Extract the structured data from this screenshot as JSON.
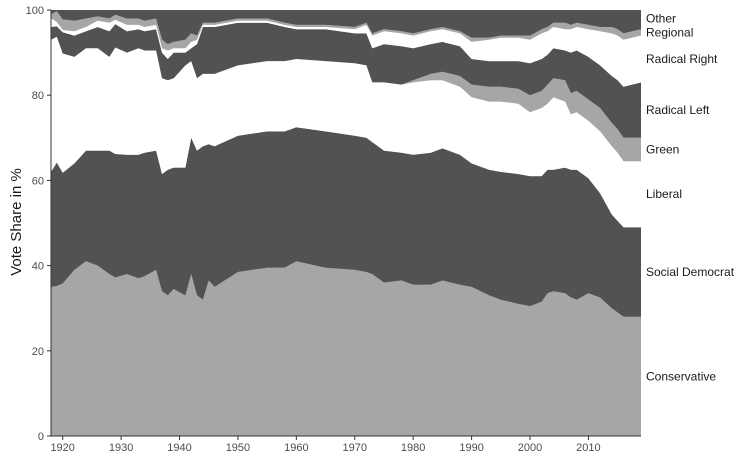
{
  "chart_data": {
    "type": "area",
    "stacked": true,
    "ylabel": "Vote Share in %",
    "xlabel": "",
    "xlim": [
      1918,
      2019
    ],
    "ylim": [
      0,
      100
    ],
    "x_ticks": [
      1920,
      1930,
      1940,
      1950,
      1960,
      1970,
      1980,
      1990,
      2000,
      2010
    ],
    "y_ticks": [
      0,
      20,
      40,
      60,
      80,
      100
    ],
    "grid": false,
    "legend": "direct labels right",
    "x": [
      1918,
      1919,
      1920,
      1922,
      1924,
      1926,
      1928,
      1929,
      1931,
      1933,
      1934,
      1936,
      1937,
      1938,
      1939,
      1941,
      1942,
      1943,
      1944,
      1945,
      1946,
      1950,
      1955,
      1958,
      1960,
      1965,
      1970,
      1972,
      1973,
      1975,
      1978,
      1980,
      1983,
      1985,
      1988,
      1990,
      1993,
      1995,
      1998,
      2000,
      2002,
      2003,
      2004,
      2006,
      2007,
      2008,
      2010,
      2012,
      2014,
      2015,
      2016,
      2019
    ],
    "series": [
      {
        "name": "Conservative",
        "color": "#a6a6a6",
        "values": [
          35,
          35.2,
          35.8,
          39,
          41,
          40,
          38,
          37.2,
          38,
          37,
          37.5,
          39,
          34,
          33,
          34.5,
          33,
          38,
          33,
          32,
          36.5,
          35,
          38.5,
          39.5,
          39.5,
          41,
          39.5,
          39,
          38.5,
          38,
          36,
          36.5,
          35.5,
          35.5,
          36.5,
          35.5,
          35,
          33,
          32,
          31,
          30.5,
          31.5,
          33.5,
          34,
          33.5,
          32.5,
          32,
          33.5,
          32.5,
          30,
          29,
          28,
          28
        ]
      },
      {
        "name": "Social Democrat",
        "color": "#525252",
        "values": [
          27,
          29,
          26,
          25,
          26,
          27,
          29,
          29,
          28,
          29,
          29,
          28,
          27.5,
          29.5,
          28.5,
          30,
          32,
          34,
          36,
          32,
          33,
          32,
          32,
          32,
          31.5,
          32,
          31.5,
          31.5,
          31,
          31,
          30,
          30.5,
          31,
          31,
          30.5,
          29,
          29.5,
          30,
          30.5,
          30.5,
          29.5,
          29,
          28.5,
          29.5,
          30,
          30.5,
          27,
          24.5,
          22,
          21.5,
          21,
          21
        ]
      },
      {
        "name": "Liberal",
        "color": "#ffffff",
        "values": [
          31,
          29.5,
          28,
          25,
          24,
          24,
          22,
          25,
          24,
          25,
          24,
          23.5,
          22.5,
          21,
          21,
          24,
          18,
          17,
          17,
          16.5,
          17,
          16.5,
          16.5,
          16.5,
          16,
          16.5,
          17,
          17,
          14,
          16,
          16,
          17,
          17,
          16,
          16,
          15.5,
          16,
          16.5,
          16.5,
          15,
          16,
          15.5,
          17,
          15.5,
          13,
          13.5,
          13.5,
          14.5,
          16,
          16,
          15.5,
          15.5
        ]
      },
      {
        "name": "Green",
        "color": "#a6a6a6",
        "values": [
          0,
          0,
          0,
          0,
          0,
          0,
          0,
          0,
          0,
          0,
          0,
          0,
          0,
          0,
          0,
          0,
          0,
          0,
          0,
          0,
          0,
          0,
          0,
          0,
          0,
          0,
          0,
          0,
          0,
          0,
          0,
          0.5,
          1.5,
          2,
          2.5,
          3,
          3.5,
          3.5,
          3.5,
          4,
          4,
          4.5,
          4.5,
          5,
          5,
          5,
          5,
          5.5,
          5.5,
          5.5,
          5.5,
          5.5
        ]
      },
      {
        "name": "Radical Left",
        "color": "#525252",
        "values": [
          3,
          2.5,
          5,
          5,
          4,
          5,
          6,
          5.5,
          5,
          4.5,
          4.5,
          5,
          6,
          5,
          6,
          3,
          3,
          8,
          11,
          11,
          11,
          10,
          9,
          8,
          7,
          7.5,
          7,
          7.5,
          8,
          9,
          9,
          7.5,
          7,
          7,
          7,
          6,
          6,
          6,
          6.5,
          7.5,
          7.5,
          7,
          7,
          7,
          9.5,
          9.5,
          10,
          10,
          11,
          11.5,
          12,
          13
        ]
      },
      {
        "name": "Radical Right",
        "color": "#ffffff",
        "values": [
          2,
          1,
          0.5,
          1,
          1,
          1.5,
          2,
          1,
          1.5,
          1,
          1,
          1,
          1,
          2,
          1,
          1,
          1.5,
          1,
          0.5,
          0.5,
          0.5,
          0.5,
          0.5,
          0.5,
          0.5,
          0.5,
          1,
          2,
          3,
          3,
          3,
          3,
          3,
          3,
          3,
          4,
          5,
          5.5,
          5.5,
          5.5,
          6,
          5.5,
          5,
          5,
          5.5,
          5.5,
          6.5,
          8,
          10,
          10.5,
          11,
          11
        ]
      },
      {
        "name": "Regional",
        "color": "#a6a6a6",
        "values": [
          1,
          2.5,
          2.5,
          2.5,
          2,
          1,
          1,
          1.2,
          1.5,
          1.5,
          1.5,
          1.5,
          2,
          1.5,
          1.5,
          2,
          2,
          1,
          0.5,
          0.5,
          0.5,
          0.5,
          0.5,
          0.5,
          0.5,
          0.5,
          0.5,
          0.5,
          0.5,
          0.5,
          0.5,
          0.5,
          0.5,
          0.5,
          0.5,
          1,
          0.5,
          0.5,
          0.5,
          1,
          1,
          1,
          1,
          1.5,
          1,
          1,
          1,
          1,
          1.5,
          1.5,
          1.5,
          1.5
        ]
      },
      {
        "name": "Other",
        "color": "#525252",
        "values": [
          1,
          1.3,
          2.2,
          2.5,
          2,
          1.5,
          2,
          1.1,
          2,
          2,
          2.5,
          2,
          7,
          8,
          7.5,
          7,
          5.5,
          6,
          3,
          3,
          3,
          2,
          1.5,
          2.5,
          2.5,
          3.5,
          3,
          2.5,
          2.5,
          4.5,
          5,
          5.5,
          4.5,
          3.5,
          5,
          5.5,
          6.5,
          6,
          5,
          6,
          4.5,
          4,
          3,
          3,
          3.5,
          3,
          2.5,
          4,
          4,
          4.5,
          5.5,
          4.5
        ]
      }
    ]
  }
}
